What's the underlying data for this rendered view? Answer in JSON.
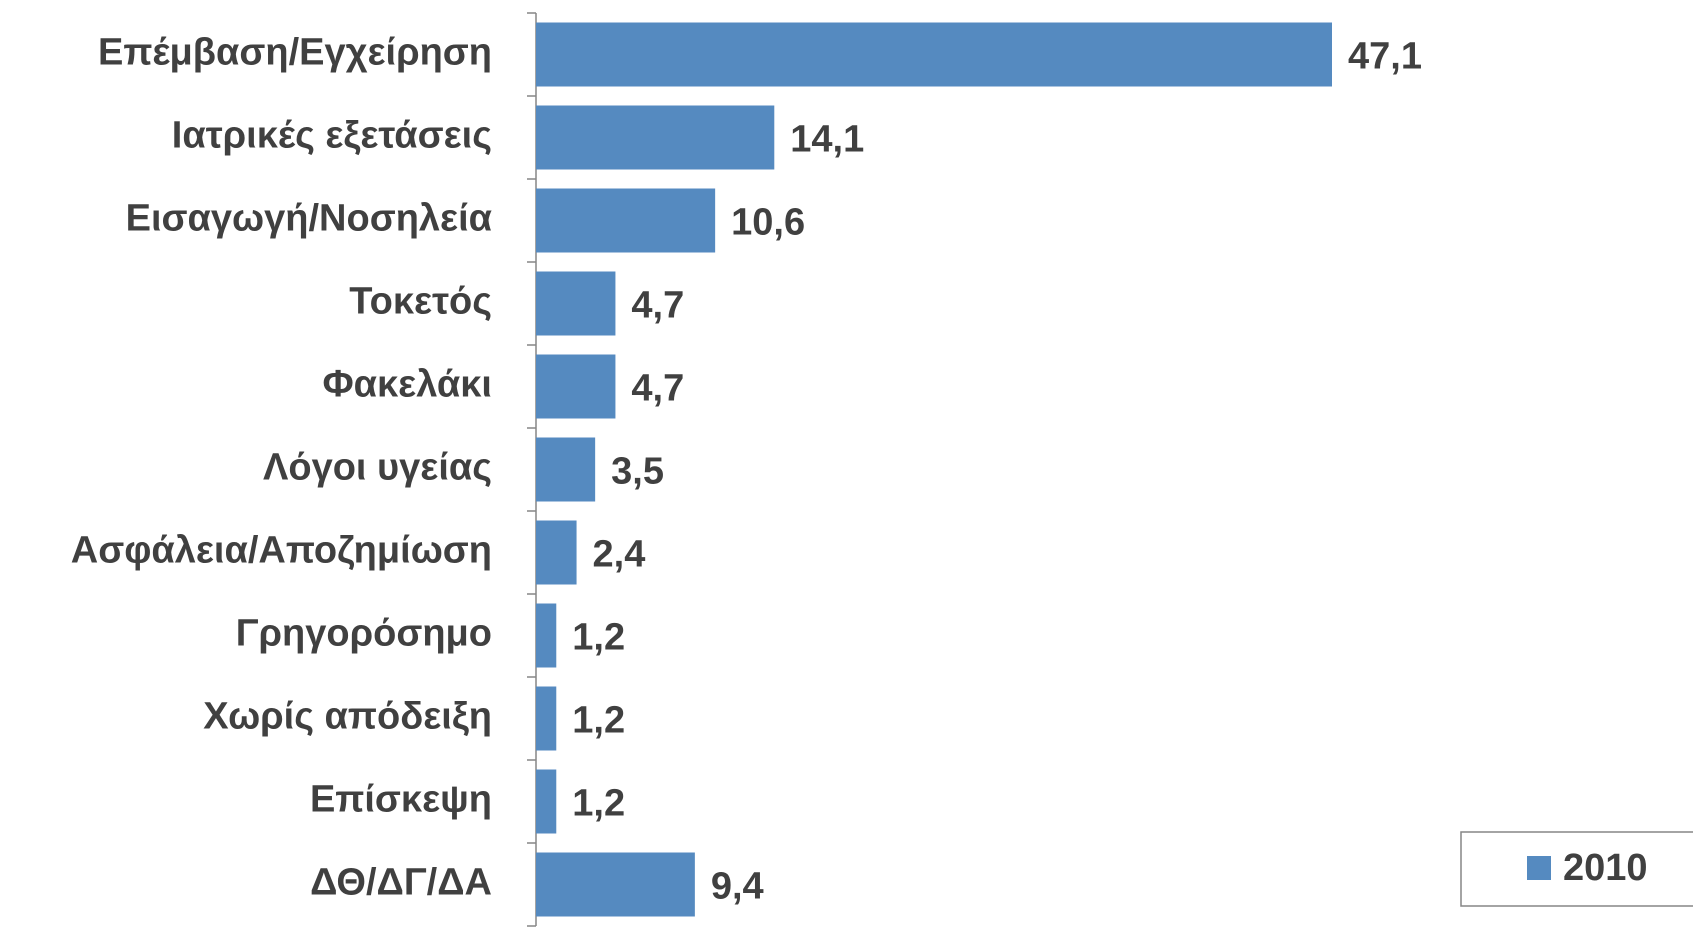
{
  "chart_data": {
    "type": "barh",
    "categories": [
      "Επέμβαση/Εγχείρηση",
      "Ιατρικές εξετάσεις",
      "Εισαγωγή/Νοσηλεία",
      "Τοκετός",
      "Φακελάκι",
      "Λόγοι υγείας",
      "Ασφάλεια/Αποζημίωση",
      "Γρηγορόσημο",
      "Χωρίς απόδειξη",
      "Επίσκεψη",
      "ΔΘ/ΔΓ/ΔΑ"
    ],
    "series": [
      {
        "name": "2010",
        "color": "#558ac0",
        "values": [
          47.1,
          14.1,
          10.6,
          4.7,
          4.7,
          3.5,
          2.4,
          1.2,
          1.2,
          1.2,
          9.4
        ],
        "value_labels": [
          "47,1",
          "14,1",
          "10,6",
          "4,7",
          "4,7",
          "3,5",
          "2,4",
          "1,2",
          "1,2",
          "1,2",
          "9,4"
        ]
      }
    ],
    "legend": "bottom-right"
  }
}
